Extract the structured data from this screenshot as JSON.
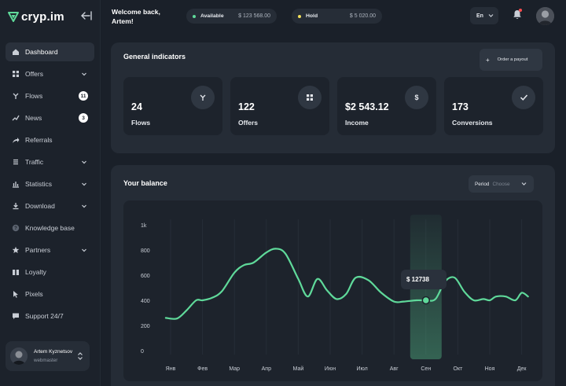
{
  "app": {
    "logo_text": "cryp.im",
    "colors": {
      "accent": "#5fd99a",
      "accent_dark": "#2f5c49",
      "badge_bg": "#ffffff",
      "notification": "#ff4d4f"
    }
  },
  "sidebar": {
    "items": [
      {
        "label": "Dashboard",
        "icon": "home-icon",
        "active": true
      },
      {
        "label": "Offers",
        "icon": "grid-icon",
        "chevron": true
      },
      {
        "label": "Flows",
        "icon": "flow-icon",
        "badge": "11"
      },
      {
        "label": "News",
        "icon": "news-icon",
        "badge": "3"
      },
      {
        "label": "Referrals",
        "icon": "share-icon"
      },
      {
        "label": "Traffic",
        "icon": "list-icon",
        "chevron": true
      },
      {
        "label": "Statistics",
        "icon": "bar-chart-icon",
        "chevron": true
      },
      {
        "label": "Download",
        "icon": "download-icon",
        "chevron": true
      },
      {
        "label": "Knowledge base",
        "icon": "help-icon"
      },
      {
        "label": "Partners",
        "icon": "star-icon",
        "chevron": true
      },
      {
        "label": "Loyalty",
        "icon": "loyalty-icon"
      },
      {
        "label": "Pixels",
        "icon": "cursor-icon"
      },
      {
        "label": "Support 24/7",
        "icon": "chat-icon"
      }
    ],
    "user": {
      "name": "Artem Kyznetsov",
      "role": "webmaster"
    }
  },
  "header": {
    "welcome_line1": "Welcome back,",
    "welcome_line2": "Artem!",
    "available_label": "Available",
    "available_value": "$ 123 568.00",
    "available_color": "#5fd99a",
    "hold_label": "Hold",
    "hold_value": "$ 5 020.00",
    "hold_color": "#f2e05a",
    "language": "En"
  },
  "indicators": {
    "title": "General indicators",
    "payout_button": "Order a payout",
    "cards": [
      {
        "value": "24",
        "label": "Flows",
        "icon": "flow-icon"
      },
      {
        "value": "122",
        "label": "Offers",
        "icon": "grid-icon"
      },
      {
        "value": "$2 543.12",
        "label": "Income",
        "icon": "dollar-icon"
      },
      {
        "value": "173",
        "label": "Conversions",
        "icon": "check-icon"
      }
    ]
  },
  "balance": {
    "title": "Your balance",
    "period_label": "Period",
    "period_value": "Choose",
    "tooltip_value": "$ 12738"
  },
  "chart_data": {
    "type": "line",
    "categories": [
      "Янв",
      "Фев",
      "Мар",
      "Апр",
      "Май",
      "Июн",
      "Июл",
      "Авг",
      "Сен",
      "Окт",
      "Ноя",
      "Дек"
    ],
    "y_ticks": [
      "0",
      "200",
      "400",
      "600",
      "800",
      "1k"
    ],
    "ylim": [
      0,
      1000
    ],
    "highlight_index": 8,
    "line_color": "#5fd99a",
    "x": [
      -0.15,
      0.2,
      0.5,
      0.8,
      1.0,
      1.3,
      1.6,
      2.0,
      2.3,
      2.6,
      3.0,
      3.3,
      3.6,
      4.0,
      4.3,
      4.6,
      4.9,
      5.2,
      5.5,
      5.8,
      6.2,
      6.6,
      7.0,
      7.3,
      7.7,
      8.0,
      8.3,
      8.6,
      8.9,
      9.2,
      9.5,
      9.8,
      10.0,
      10.2,
      10.5,
      10.8,
      11.0,
      11.2
    ],
    "values": [
      260,
      255,
      320,
      400,
      400,
      420,
      470,
      620,
      680,
      700,
      780,
      810,
      770,
      570,
      430,
      570,
      480,
      410,
      450,
      580,
      560,
      460,
      390,
      390,
      400,
      400,
      410,
      550,
      580,
      470,
      400,
      410,
      400,
      430,
      430,
      400,
      460,
      430
    ]
  }
}
